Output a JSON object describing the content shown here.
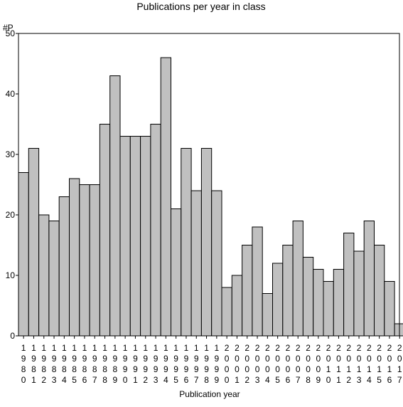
{
  "chart_data": {
    "type": "bar",
    "title": "Publications per year in class",
    "ylabel": "#P",
    "xlabel": "Publication year",
    "ylim": [
      0,
      50
    ],
    "yticks": [
      0,
      10,
      20,
      30,
      40,
      50
    ],
    "grid": false,
    "categories": [
      "1980",
      "1981",
      "1982",
      "1983",
      "1984",
      "1985",
      "1986",
      "1987",
      "1988",
      "1989",
      "1990",
      "1991",
      "1992",
      "1993",
      "1994",
      "1995",
      "1996",
      "1997",
      "1998",
      "1999",
      "2000",
      "2001",
      "2002",
      "2003",
      "2004",
      "2005",
      "2006",
      "2007",
      "2008",
      "2009",
      "2010",
      "2011",
      "2012",
      "2013",
      "2014",
      "2015",
      "2016",
      "2017"
    ],
    "values": [
      27,
      31,
      20,
      19,
      23,
      26,
      25,
      25,
      35,
      43,
      33,
      33,
      33,
      35,
      46,
      21,
      31,
      24,
      31,
      24,
      8,
      10,
      15,
      18,
      7,
      12,
      15,
      19,
      13,
      11,
      9,
      11,
      17,
      14,
      19,
      15,
      9,
      2
    ],
    "colors": {
      "bar_fill": "#c0c0c0",
      "bar_stroke": "#000000"
    }
  }
}
